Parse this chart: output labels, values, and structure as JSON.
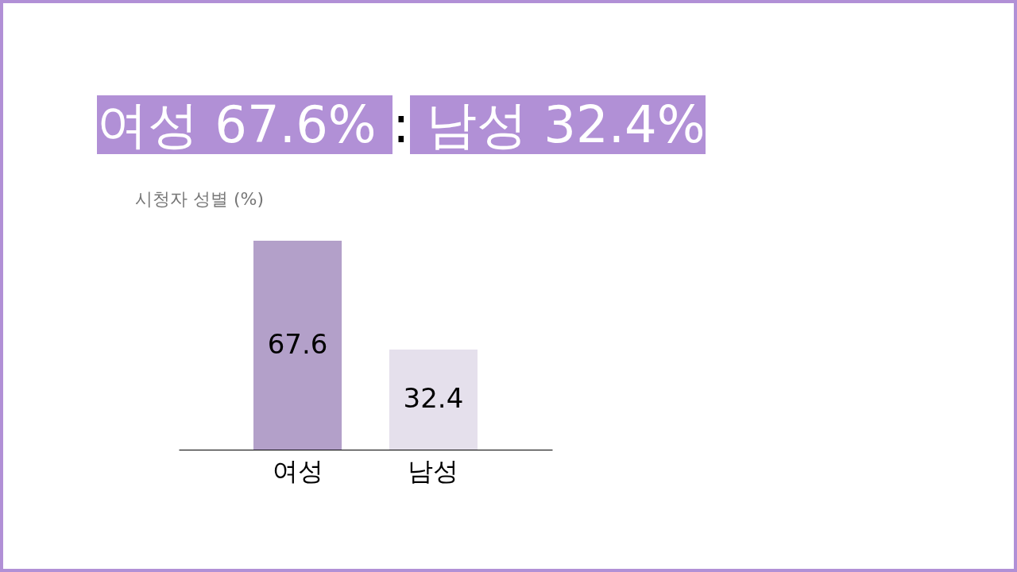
{
  "chart_data": {
    "type": "bar",
    "title": "여성 67.6% : 남성 32.4%",
    "subtitle": "시청자 성별 (%)",
    "categories": [
      "여성",
      "남성"
    ],
    "values": [
      67.6,
      32.4
    ],
    "colors": [
      "#b3a0c9",
      "#e5e0ec"
    ],
    "data_labels": true,
    "grid": false
  }
}
